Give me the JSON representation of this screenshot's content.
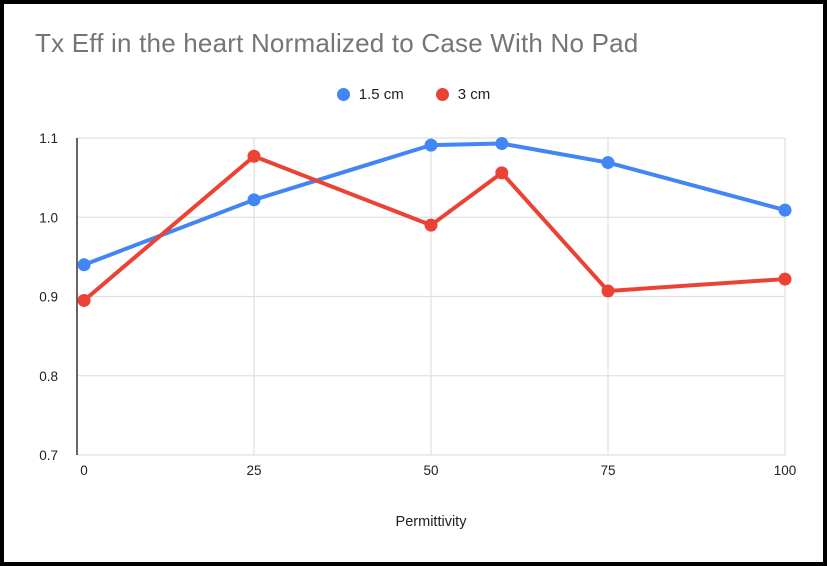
{
  "chart_data": {
    "type": "line",
    "title": "Tx Eff in the heart Normalized to Case With No Pad",
    "xlabel": "Permittivity",
    "ylabel": "",
    "x": [
      1,
      25,
      50,
      60,
      75,
      100
    ],
    "series": [
      {
        "name": "1.5 cm",
        "color": "#4285F4",
        "values": [
          0.94,
          1.022,
          1.091,
          1.093,
          1.069,
          1.009
        ]
      },
      {
        "name": "3 cm",
        "color": "#EA4335",
        "values": [
          0.895,
          1.077,
          0.99,
          1.056,
          0.907,
          0.922
        ]
      }
    ],
    "xlim": [
      0,
      100
    ],
    "ylim": [
      0.7,
      1.1
    ],
    "x_ticks": [
      0,
      25,
      50,
      75,
      100
    ],
    "y_ticks": [
      "1.1",
      "1.0",
      "0.9",
      "0.8",
      "0.7"
    ],
    "grid": true,
    "legend_position": "top"
  },
  "style": {
    "title_color": "#757575",
    "tick_label_color": "#212121",
    "gridline_color": "#e0e0e0",
    "axis_line_color": "#333333",
    "frame_border_color": "#000000",
    "background": "#ffffff"
  }
}
